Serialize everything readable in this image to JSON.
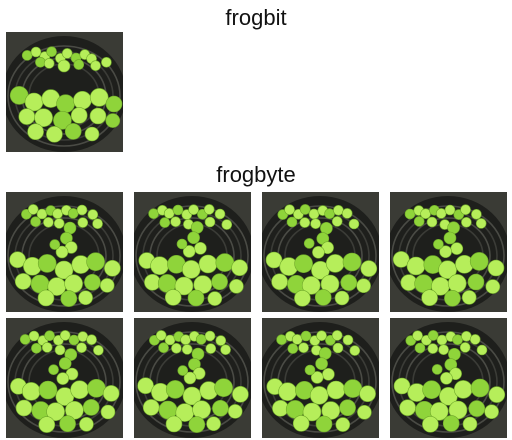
{
  "sections": {
    "top_title": "frogbit",
    "bottom_title": "frogbyte"
  },
  "images": {
    "original": {
      "icon": "frogbit-tray-photo"
    },
    "variants": [
      {
        "icon": "frogbit-tray-photo"
      },
      {
        "icon": "frogbit-tray-photo"
      },
      {
        "icon": "frogbit-tray-photo"
      },
      {
        "icon": "frogbit-tray-photo"
      },
      {
        "icon": "frogbit-tray-photo"
      },
      {
        "icon": "frogbit-tray-photo"
      },
      {
        "icon": "frogbit-tray-photo"
      },
      {
        "icon": "frogbit-tray-photo"
      }
    ]
  },
  "colors": {
    "background": "#ffffff",
    "leaf_light": "#b6ee5a",
    "leaf_mid": "#8fd43a",
    "tray_dark": "#1e1f1c"
  }
}
